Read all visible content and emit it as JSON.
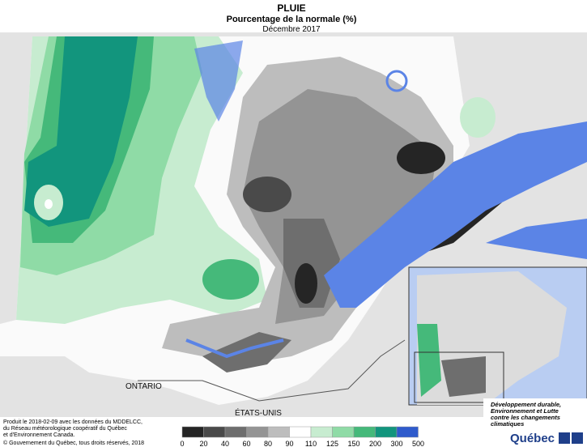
{
  "header": {
    "title": "PLUIE",
    "subtitle": "Pourcentage de la normale (%)",
    "date": "Décembre 2017"
  },
  "map_labels": {
    "ontario": "ONTARIO",
    "usa": "ÉTATS-UNIS"
  },
  "credits": [
    "Produit le 2018-02-09 avec les données du MDDELCC,",
    "du Réseau météorologique coopératif du Québec",
    "et d'Environnement Canada."
  ],
  "copyright": "© Gouvernement du Québec, tous droits réservés, 2018",
  "legend": {
    "bins": [
      0,
      20,
      40,
      60,
      80,
      90,
      110,
      125,
      150,
      200,
      300,
      500
    ],
    "colors": [
      "#252525",
      "#4a4a4a",
      "#6e6e6e",
      "#949494",
      "#bdbdbd",
      "#ffffff",
      "#c7ecd0",
      "#8fdba6",
      "#45b97a",
      "#12957d",
      "#2f5bcc",
      "#2222aa"
    ]
  },
  "logo": {
    "lines": [
      "Développement durable,",
      "Environnement et Lutte",
      "contre les changements",
      "climatiques"
    ],
    "brand": "Québec"
  }
}
